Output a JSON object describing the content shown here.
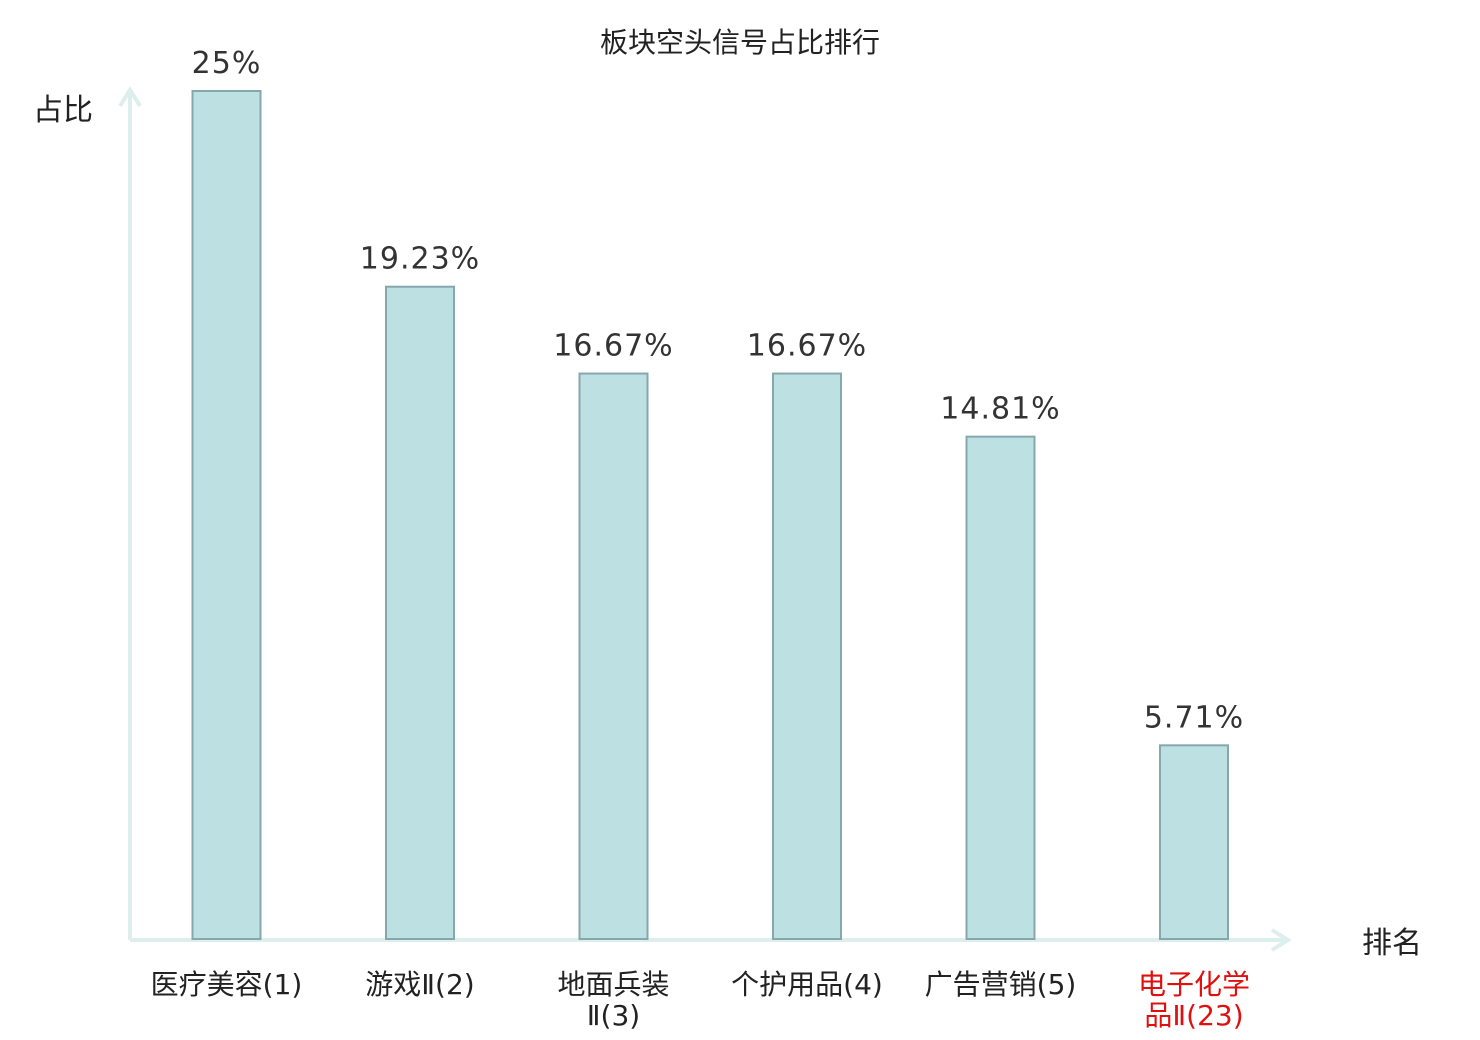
{
  "chart_data": {
    "type": "bar",
    "title": "板块空头信号占比排行",
    "ylabel": "占比",
    "xlabel": "排名",
    "ylim": [
      0,
      25
    ],
    "grid": false,
    "categories": [
      [
        "医疗美容(1)"
      ],
      [
        "游戏Ⅱ(2)"
      ],
      [
        "地面兵装",
        "Ⅱ(3)"
      ],
      [
        "个护用品(4)"
      ],
      [
        "广告营销(5)"
      ],
      [
        "电子化学",
        "品Ⅱ(23)"
      ]
    ],
    "values": [
      25,
      19.23,
      16.67,
      16.67,
      14.81,
      5.71
    ],
    "value_labels": [
      "25%",
      "19.23%",
      "16.67%",
      "16.67%",
      "14.81%",
      "5.71%"
    ],
    "highlight_index": 5
  },
  "colors": {
    "bar_fill": "#bde0e3",
    "bar_stroke": "#86a8ac",
    "axis": "#dcefed",
    "text": "#222222",
    "highlight_text": "#e01010"
  }
}
